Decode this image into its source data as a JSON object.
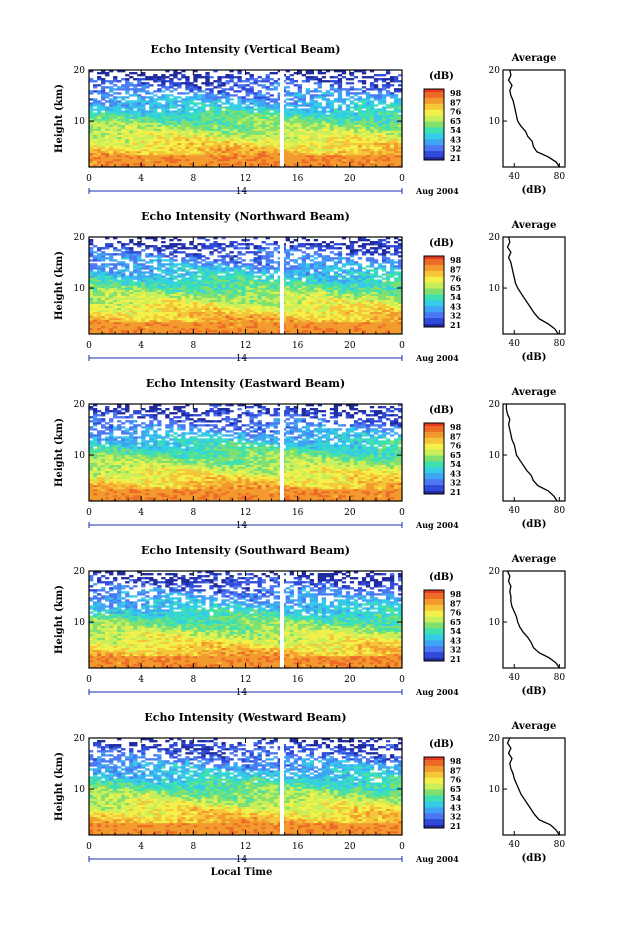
{
  "chart_data": [
    {
      "type": "heatmap",
      "title": "Echo Intensity (Vertical Beam)",
      "ylabel": "Height (km)",
      "xticks": [
        "0",
        "4",
        "8",
        "12",
        "16",
        "20",
        "0"
      ],
      "yticks": [
        "20",
        "10"
      ],
      "xlim": [
        0,
        24
      ],
      "ylim": [
        1,
        20
      ],
      "date_label": "14",
      "month_label": "Aug 2004",
      "colorbar": {
        "unit": "(dB)",
        "labels": [
          "98",
          "87",
          "76",
          "65",
          "54",
          "43",
          "32",
          "21"
        ]
      },
      "data_gap_time": 14.8,
      "average_profile": {
        "title": "Average",
        "xlabel": "(dB)",
        "xticks": [
          "40",
          "80"
        ],
        "xlim": [
          30,
          85
        ],
        "yticks": [
          "20",
          "10"
        ],
        "ylim": [
          1,
          20
        ],
        "heights": [
          1,
          2,
          3,
          4,
          5,
          6,
          7,
          8,
          9,
          10,
          11,
          12,
          13,
          14,
          15,
          16,
          17,
          18,
          19,
          20
        ],
        "values": [
          80,
          77,
          70,
          60,
          57,
          56,
          52,
          50,
          46,
          43,
          42,
          41,
          40,
          39,
          37,
          36,
          38,
          35,
          37,
          36
        ]
      }
    },
    {
      "type": "heatmap",
      "title": "Echo Intensity (Northward Beam)",
      "ylabel": "Height (km)",
      "xticks": [
        "0",
        "4",
        "8",
        "12",
        "16",
        "20",
        "0"
      ],
      "yticks": [
        "20",
        "10"
      ],
      "xlim": [
        0,
        24
      ],
      "ylim": [
        1,
        20
      ],
      "date_label": "14",
      "month_label": "Aug 2004",
      "colorbar": {
        "unit": "(dB)",
        "labels": [
          "98",
          "87",
          "76",
          "65",
          "54",
          "43",
          "32",
          "21"
        ]
      },
      "data_gap_time": 14.8,
      "average_profile": {
        "title": "Average",
        "xlabel": "(dB)",
        "xticks": [
          "40",
          "80"
        ],
        "xlim": [
          30,
          85
        ],
        "yticks": [
          "20",
          "10"
        ],
        "ylim": [
          1,
          20
        ],
        "heights": [
          1,
          2,
          3,
          4,
          5,
          6,
          7,
          8,
          9,
          10,
          11,
          12,
          13,
          14,
          15,
          16,
          17,
          18,
          19,
          20
        ],
        "values": [
          79,
          76,
          70,
          62,
          58,
          55,
          52,
          49,
          46,
          43,
          41,
          40,
          39,
          38,
          37,
          35,
          37,
          34,
          36,
          35
        ]
      }
    },
    {
      "type": "heatmap",
      "title": "Echo Intensity (Eastward Beam)",
      "ylabel": "Height (km)",
      "xticks": [
        "0",
        "4",
        "8",
        "12",
        "16",
        "20",
        "0"
      ],
      "yticks": [
        "20",
        "10"
      ],
      "xlim": [
        0,
        24
      ],
      "ylim": [
        1,
        20
      ],
      "date_label": "14",
      "month_label": "Aug 2004",
      "colorbar": {
        "unit": "(dB)",
        "labels": [
          "98",
          "87",
          "76",
          "65",
          "54",
          "43",
          "32",
          "21"
        ]
      },
      "data_gap_time": 14.8,
      "average_profile": {
        "title": "Average",
        "xlabel": "(dB)",
        "xticks": [
          "40",
          "80"
        ],
        "xlim": [
          30,
          85
        ],
        "yticks": [
          "20",
          "10"
        ],
        "ylim": [
          1,
          20
        ],
        "heights": [
          1,
          2,
          3,
          4,
          5,
          6,
          7,
          8,
          9,
          10,
          11,
          12,
          13,
          14,
          15,
          16,
          17,
          18,
          19,
          20
        ],
        "values": [
          78,
          75,
          70,
          61,
          57,
          55,
          51,
          48,
          45,
          42,
          41,
          40,
          38,
          37,
          36,
          35,
          36,
          34,
          33,
          33
        ]
      }
    },
    {
      "type": "heatmap",
      "title": "Echo Intensity (Southward Beam)",
      "ylabel": "Height (km)",
      "xticks": [
        "0",
        "4",
        "8",
        "12",
        "16",
        "20",
        "0"
      ],
      "yticks": [
        "20",
        "10"
      ],
      "xlim": [
        0,
        24
      ],
      "ylim": [
        1,
        20
      ],
      "date_label": "14",
      "month_label": "Aug 2004",
      "colorbar": {
        "unit": "(dB)",
        "labels": [
          "98",
          "87",
          "76",
          "65",
          "54",
          "43",
          "32",
          "21"
        ]
      },
      "data_gap_time": 14.8,
      "average_profile": {
        "title": "Average",
        "xlabel": "(dB)",
        "xticks": [
          "40",
          "80"
        ],
        "xlim": [
          30,
          85
        ],
        "yticks": [
          "20",
          "10"
        ],
        "ylim": [
          1,
          20
        ],
        "heights": [
          1,
          2,
          3,
          4,
          5,
          6,
          7,
          8,
          9,
          10,
          11,
          12,
          13,
          14,
          15,
          16,
          17,
          18,
          19,
          20
        ],
        "values": [
          80,
          77,
          71,
          62,
          57,
          55,
          52,
          48,
          45,
          43,
          42,
          40,
          38,
          37,
          37,
          36,
          37,
          35,
          36,
          34
        ]
      }
    },
    {
      "type": "heatmap",
      "title": "Echo Intensity (Westward Beam)",
      "ylabel": "Height (km)",
      "xticks": [
        "0",
        "4",
        "8",
        "12",
        "16",
        "20",
        "0"
      ],
      "yticks": [
        "20",
        "10"
      ],
      "xlim": [
        0,
        24
      ],
      "ylim": [
        1,
        20
      ],
      "date_label": "14",
      "month_label": "Aug 2004",
      "xlabel": "Local Time",
      "colorbar": {
        "unit": "(dB)",
        "labels": [
          "98",
          "87",
          "76",
          "65",
          "54",
          "43",
          "32",
          "21"
        ]
      },
      "data_gap_time": 14.8,
      "average_profile": {
        "title": "Average",
        "xlabel": "(dB)",
        "xticks": [
          "40",
          "80"
        ],
        "xlim": [
          30,
          85
        ],
        "yticks": [
          "20",
          "10"
        ],
        "ylim": [
          1,
          20
        ],
        "heights": [
          1,
          2,
          3,
          4,
          5,
          6,
          7,
          8,
          9,
          10,
          11,
          12,
          13,
          14,
          15,
          16,
          17,
          18,
          19,
          20
        ],
        "values": [
          80,
          77,
          72,
          62,
          58,
          55,
          52,
          49,
          46,
          44,
          42,
          40,
          39,
          37,
          36,
          38,
          35,
          37,
          34,
          36
        ]
      }
    }
  ]
}
